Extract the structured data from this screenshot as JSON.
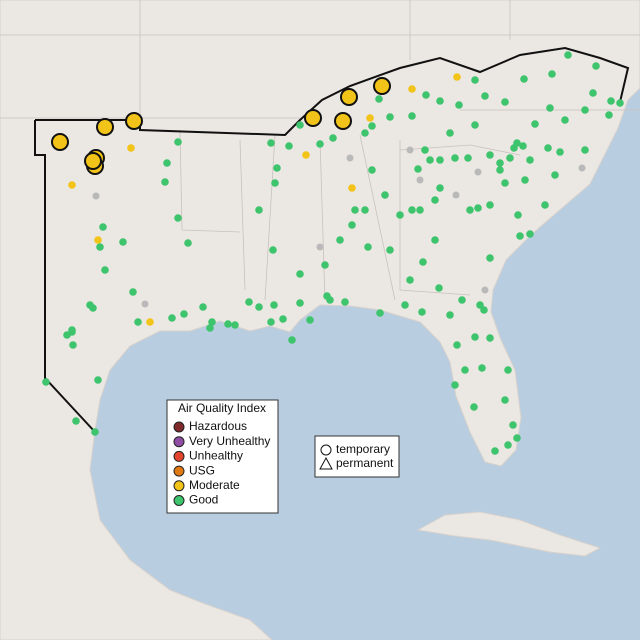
{
  "legend": {
    "title": "Air Quality Index",
    "items": [
      {
        "label": "Hazardous",
        "color": "#7e2a2a"
      },
      {
        "label": "Very Unhealthy",
        "color": "#8f4ea3"
      },
      {
        "label": "Unhealthy",
        "color": "#e2452d"
      },
      {
        "label": "USG",
        "color": "#e07914"
      },
      {
        "label": "Moderate",
        "color": "#f2c318"
      },
      {
        "label": "Good",
        "color": "#3dc46d"
      }
    ]
  },
  "shape_legend": {
    "items": [
      {
        "label": "temporary",
        "shape": "circle"
      },
      {
        "label": "permanent",
        "shape": "triangle"
      }
    ]
  }
}
